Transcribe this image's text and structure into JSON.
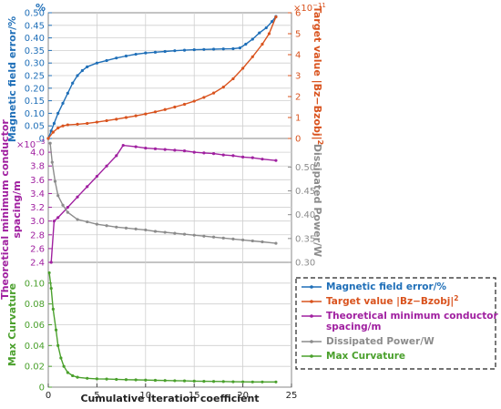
{
  "chart_data": {
    "type": "line",
    "x_axis": {
      "label": "Cumulative iteration coefficient",
      "range": [
        0,
        25
      ],
      "ticks": [
        0,
        5,
        10,
        15,
        20,
        25
      ]
    },
    "panels": [
      {
        "id": "top",
        "left_axis": {
          "label": "Magnetic field error/%",
          "unit": "%",
          "range": [
            0,
            0.5
          ],
          "ticks": [
            "0",
            "0.05",
            "0.10",
            "0.15",
            "0.20",
            "0.25",
            "0.30",
            "0.35",
            "0.40",
            "0.45",
            "0.50"
          ],
          "color": "#1f6fb8"
        },
        "right_axis": {
          "label_main": "Target value |Bz−Bzobj|",
          "label_sup": "2",
          "exponent_base": "×10",
          "exponent_power": "−11",
          "range": [
            0,
            6
          ],
          "ticks": [
            "0",
            "1",
            "2",
            "3",
            "4",
            "5",
            "6"
          ],
          "color": "#d9531e"
        }
      },
      {
        "id": "middle",
        "left_axis": {
          "label_line1": "Theoretical minimum conductor",
          "label_line2": "spacing/m",
          "exponent_base": "×10",
          "exponent_power": "−3",
          "range": [
            2.4,
            4.2
          ],
          "ticks": [
            "2.4",
            "2.6",
            "2.8",
            "3.0",
            "3.2",
            "3.4",
            "3.6",
            "3.8",
            "4.0"
          ],
          "color": "#a020a0"
        },
        "right_axis": {
          "label": "Dissipated Power/W",
          "range": [
            0.3,
            0.56
          ],
          "ticks": [
            "0.30",
            "0.35",
            "0.40",
            "0.45",
            "0.50"
          ],
          "color": "#8c8c8c"
        }
      },
      {
        "id": "bottom",
        "left_axis": {
          "label": "Max Curvature",
          "range": [
            0,
            0.12
          ],
          "ticks": [
            "0",
            "0.02",
            "0.04",
            "0.06",
            "0.08",
            "0.10"
          ],
          "color": "#4aa02c"
        }
      }
    ],
    "series": [
      {
        "name": "Magnetic field error/%",
        "panel": "top",
        "axis": "left",
        "color": "#1f6fb8",
        "x": [
          0,
          0.3,
          0.6,
          1,
          1.5,
          2,
          2.5,
          3,
          3.5,
          4,
          5,
          6,
          7,
          8,
          9,
          10,
          11,
          12,
          13,
          14,
          15,
          16,
          17,
          18,
          19,
          19.7,
          20.3,
          21,
          21.7,
          22.4,
          23,
          23.4
        ],
        "y": [
          0,
          0.03,
          0.06,
          0.1,
          0.14,
          0.18,
          0.22,
          0.25,
          0.27,
          0.285,
          0.3,
          0.31,
          0.32,
          0.328,
          0.335,
          0.34,
          0.343,
          0.346,
          0.349,
          0.351,
          0.353,
          0.354,
          0.355,
          0.356,
          0.357,
          0.36,
          0.375,
          0.395,
          0.42,
          0.44,
          0.465,
          0.485
        ]
      },
      {
        "name": "Target value |Bz−Bzobj|²",
        "panel": "top",
        "axis": "right",
        "color": "#d9531e",
        "x": [
          0,
          0.5,
          1,
          1.5,
          2,
          3,
          4,
          5,
          6,
          7,
          8,
          9,
          10,
          11,
          12,
          13,
          14,
          15,
          16,
          17,
          18,
          19,
          20,
          21,
          22,
          22.7,
          23.4
        ],
        "y": [
          0,
          0.3,
          0.5,
          0.6,
          0.65,
          0.68,
          0.72,
          0.78,
          0.85,
          0.92,
          1.0,
          1.08,
          1.17,
          1.27,
          1.38,
          1.5,
          1.63,
          1.78,
          1.96,
          2.17,
          2.45,
          2.85,
          3.35,
          3.9,
          4.5,
          5.0,
          5.8
        ]
      },
      {
        "name": "Theoretical minimum conductor spacing/m",
        "panel": "middle",
        "axis": "left",
        "color": "#a020a0",
        "x": [
          0.3,
          0.6,
          1,
          2,
          3,
          4,
          5,
          6,
          7,
          7.7,
          9,
          10,
          11,
          12,
          13,
          14,
          15,
          16,
          17,
          18,
          19,
          20,
          21,
          22,
          23.4
        ],
        "y": [
          2.4,
          3.0,
          3.05,
          3.2,
          3.35,
          3.5,
          3.65,
          3.8,
          3.95,
          4.1,
          4.08,
          4.06,
          4.05,
          4.04,
          4.03,
          4.02,
          4.0,
          3.99,
          3.98,
          3.96,
          3.95,
          3.93,
          3.92,
          3.9,
          3.88
        ]
      },
      {
        "name": "Dissipated Power/W",
        "panel": "middle",
        "axis": "right",
        "color": "#8c8c8c",
        "x": [
          0.2,
          0.4,
          0.7,
          1,
          1.5,
          2,
          3,
          4,
          5,
          6,
          7,
          8,
          9,
          10,
          11,
          12,
          13,
          14,
          15,
          16,
          17,
          18,
          19,
          20,
          21,
          22,
          23.4
        ],
        "y": [
          0.55,
          0.51,
          0.47,
          0.44,
          0.42,
          0.405,
          0.39,
          0.385,
          0.38,
          0.377,
          0.374,
          0.372,
          0.37,
          0.368,
          0.365,
          0.363,
          0.361,
          0.359,
          0.357,
          0.355,
          0.353,
          0.351,
          0.349,
          0.347,
          0.345,
          0.343,
          0.34
        ]
      },
      {
        "name": "Max Curvature",
        "panel": "bottom",
        "axis": "left",
        "color": "#4aa02c",
        "x": [
          0.1,
          0.3,
          0.5,
          0.8,
          1,
          1.3,
          1.6,
          2,
          2.5,
          3,
          4,
          5,
          6,
          7,
          8,
          9,
          10,
          11,
          12,
          13,
          14,
          15,
          16,
          17,
          18,
          19,
          20,
          21,
          22,
          23.4
        ],
        "y": [
          0.11,
          0.095,
          0.075,
          0.055,
          0.04,
          0.028,
          0.02,
          0.014,
          0.011,
          0.0095,
          0.0085,
          0.008,
          0.0078,
          0.0075,
          0.0072,
          0.007,
          0.0068,
          0.0066,
          0.0064,
          0.0062,
          0.006,
          0.0058,
          0.0056,
          0.0055,
          0.0054,
          0.0052,
          0.0051,
          0.005,
          0.005,
          0.005
        ]
      }
    ],
    "legend": {
      "placement": "bottom-right",
      "entries": [
        {
          "text": "Magnetic field error/%",
          "color": "#1f6fb8"
        },
        {
          "text": "Target value |Bz−Bzobj|",
          "sup": "2",
          "color": "#d9531e"
        },
        {
          "text": "Theoretical minimum conductor",
          "text2": "spacing/m",
          "color": "#a020a0"
        },
        {
          "text": "Dissipated Power/W",
          "color": "#8c8c8c"
        },
        {
          "text": "Max Curvature",
          "color": "#4aa02c"
        }
      ]
    }
  }
}
